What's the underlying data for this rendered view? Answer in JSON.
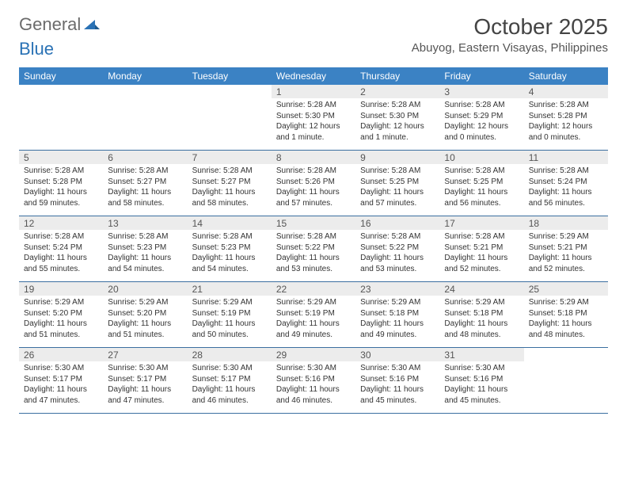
{
  "brand": {
    "part1": "General",
    "part2": "Blue"
  },
  "title": "October 2025",
  "location": "Abuyog, Eastern Visayas, Philippines",
  "colors": {
    "header_bg": "#3b82c4",
    "header_text": "#ffffff",
    "strip_bg": "#ececec",
    "border": "#3b6fa0",
    "brand_gray": "#6b6b6b",
    "brand_blue": "#2a72b5"
  },
  "day_names": [
    "Sunday",
    "Monday",
    "Tuesday",
    "Wednesday",
    "Thursday",
    "Friday",
    "Saturday"
  ],
  "weeks": [
    [
      {
        "n": "",
        "lines": []
      },
      {
        "n": "",
        "lines": []
      },
      {
        "n": "",
        "lines": []
      },
      {
        "n": "1",
        "lines": [
          "Sunrise: 5:28 AM",
          "Sunset: 5:30 PM",
          "Daylight: 12 hours",
          "and 1 minute."
        ]
      },
      {
        "n": "2",
        "lines": [
          "Sunrise: 5:28 AM",
          "Sunset: 5:30 PM",
          "Daylight: 12 hours",
          "and 1 minute."
        ]
      },
      {
        "n": "3",
        "lines": [
          "Sunrise: 5:28 AM",
          "Sunset: 5:29 PM",
          "Daylight: 12 hours",
          "and 0 minutes."
        ]
      },
      {
        "n": "4",
        "lines": [
          "Sunrise: 5:28 AM",
          "Sunset: 5:28 PM",
          "Daylight: 12 hours",
          "and 0 minutes."
        ]
      }
    ],
    [
      {
        "n": "5",
        "lines": [
          "Sunrise: 5:28 AM",
          "Sunset: 5:28 PM",
          "Daylight: 11 hours",
          "and 59 minutes."
        ]
      },
      {
        "n": "6",
        "lines": [
          "Sunrise: 5:28 AM",
          "Sunset: 5:27 PM",
          "Daylight: 11 hours",
          "and 58 minutes."
        ]
      },
      {
        "n": "7",
        "lines": [
          "Sunrise: 5:28 AM",
          "Sunset: 5:27 PM",
          "Daylight: 11 hours",
          "and 58 minutes."
        ]
      },
      {
        "n": "8",
        "lines": [
          "Sunrise: 5:28 AM",
          "Sunset: 5:26 PM",
          "Daylight: 11 hours",
          "and 57 minutes."
        ]
      },
      {
        "n": "9",
        "lines": [
          "Sunrise: 5:28 AM",
          "Sunset: 5:25 PM",
          "Daylight: 11 hours",
          "and 57 minutes."
        ]
      },
      {
        "n": "10",
        "lines": [
          "Sunrise: 5:28 AM",
          "Sunset: 5:25 PM",
          "Daylight: 11 hours",
          "and 56 minutes."
        ]
      },
      {
        "n": "11",
        "lines": [
          "Sunrise: 5:28 AM",
          "Sunset: 5:24 PM",
          "Daylight: 11 hours",
          "and 56 minutes."
        ]
      }
    ],
    [
      {
        "n": "12",
        "lines": [
          "Sunrise: 5:28 AM",
          "Sunset: 5:24 PM",
          "Daylight: 11 hours",
          "and 55 minutes."
        ]
      },
      {
        "n": "13",
        "lines": [
          "Sunrise: 5:28 AM",
          "Sunset: 5:23 PM",
          "Daylight: 11 hours",
          "and 54 minutes."
        ]
      },
      {
        "n": "14",
        "lines": [
          "Sunrise: 5:28 AM",
          "Sunset: 5:23 PM",
          "Daylight: 11 hours",
          "and 54 minutes."
        ]
      },
      {
        "n": "15",
        "lines": [
          "Sunrise: 5:28 AM",
          "Sunset: 5:22 PM",
          "Daylight: 11 hours",
          "and 53 minutes."
        ]
      },
      {
        "n": "16",
        "lines": [
          "Sunrise: 5:28 AM",
          "Sunset: 5:22 PM",
          "Daylight: 11 hours",
          "and 53 minutes."
        ]
      },
      {
        "n": "17",
        "lines": [
          "Sunrise: 5:28 AM",
          "Sunset: 5:21 PM",
          "Daylight: 11 hours",
          "and 52 minutes."
        ]
      },
      {
        "n": "18",
        "lines": [
          "Sunrise: 5:29 AM",
          "Sunset: 5:21 PM",
          "Daylight: 11 hours",
          "and 52 minutes."
        ]
      }
    ],
    [
      {
        "n": "19",
        "lines": [
          "Sunrise: 5:29 AM",
          "Sunset: 5:20 PM",
          "Daylight: 11 hours",
          "and 51 minutes."
        ]
      },
      {
        "n": "20",
        "lines": [
          "Sunrise: 5:29 AM",
          "Sunset: 5:20 PM",
          "Daylight: 11 hours",
          "and 51 minutes."
        ]
      },
      {
        "n": "21",
        "lines": [
          "Sunrise: 5:29 AM",
          "Sunset: 5:19 PM",
          "Daylight: 11 hours",
          "and 50 minutes."
        ]
      },
      {
        "n": "22",
        "lines": [
          "Sunrise: 5:29 AM",
          "Sunset: 5:19 PM",
          "Daylight: 11 hours",
          "and 49 minutes."
        ]
      },
      {
        "n": "23",
        "lines": [
          "Sunrise: 5:29 AM",
          "Sunset: 5:18 PM",
          "Daylight: 11 hours",
          "and 49 minutes."
        ]
      },
      {
        "n": "24",
        "lines": [
          "Sunrise: 5:29 AM",
          "Sunset: 5:18 PM",
          "Daylight: 11 hours",
          "and 48 minutes."
        ]
      },
      {
        "n": "25",
        "lines": [
          "Sunrise: 5:29 AM",
          "Sunset: 5:18 PM",
          "Daylight: 11 hours",
          "and 48 minutes."
        ]
      }
    ],
    [
      {
        "n": "26",
        "lines": [
          "Sunrise: 5:30 AM",
          "Sunset: 5:17 PM",
          "Daylight: 11 hours",
          "and 47 minutes."
        ]
      },
      {
        "n": "27",
        "lines": [
          "Sunrise: 5:30 AM",
          "Sunset: 5:17 PM",
          "Daylight: 11 hours",
          "and 47 minutes."
        ]
      },
      {
        "n": "28",
        "lines": [
          "Sunrise: 5:30 AM",
          "Sunset: 5:17 PM",
          "Daylight: 11 hours",
          "and 46 minutes."
        ]
      },
      {
        "n": "29",
        "lines": [
          "Sunrise: 5:30 AM",
          "Sunset: 5:16 PM",
          "Daylight: 11 hours",
          "and 46 minutes."
        ]
      },
      {
        "n": "30",
        "lines": [
          "Sunrise: 5:30 AM",
          "Sunset: 5:16 PM",
          "Daylight: 11 hours",
          "and 45 minutes."
        ]
      },
      {
        "n": "31",
        "lines": [
          "Sunrise: 5:30 AM",
          "Sunset: 5:16 PM",
          "Daylight: 11 hours",
          "and 45 minutes."
        ]
      },
      {
        "n": "",
        "lines": []
      }
    ]
  ]
}
